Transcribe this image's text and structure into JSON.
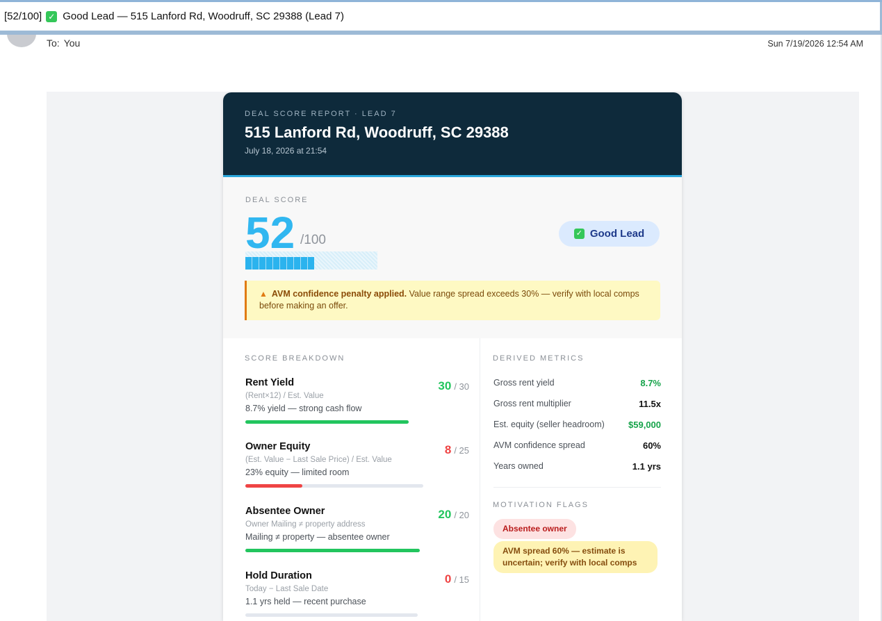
{
  "subject": {
    "prefix": "[52/100]",
    "text": "Good Lead — 515 Lanford Rd, Woodruff, SC 29388 (Lead 7)"
  },
  "meta": {
    "to_label": "To:",
    "to_value": "You",
    "date": "Sun 7/19/2026 12:54 AM"
  },
  "report": {
    "eyebrow": "DEAL SCORE REPORT · LEAD 7",
    "address": "515 Lanford Rd, Woodruff, SC 29388",
    "generated": "July 18, 2026 at 21:54"
  },
  "score": {
    "eyebrow": "DEAL SCORE",
    "value": "52",
    "max": "/100",
    "fraction": 0.52,
    "badge": "Good Lead"
  },
  "warning": {
    "bold": "AVM confidence penalty applied.",
    "text": " Value range spread exceeds 30% — verify with local comps before making an offer."
  },
  "breakdown": {
    "eyebrow": "SCORE BREAKDOWN",
    "items": [
      {
        "title": "Rent Yield",
        "formula": "(Rent×12) / Est. Value",
        "desc": "8.7% yield — strong cash flow",
        "points": "30",
        "max": "/ 30",
        "fraction": 1.0,
        "color": "#22c55e"
      },
      {
        "title": "Owner Equity",
        "formula": "(Est. Value − Last Sale Price) / Est. Value",
        "desc": "23% equity — limited room",
        "points": "8",
        "max": "/ 25",
        "fraction": 0.32,
        "color": "#ef4444"
      },
      {
        "title": "Absentee Owner",
        "formula": "Owner Mailing ≠ property address",
        "desc": "Mailing ≠ property — absentee owner",
        "points": "20",
        "max": "/ 20",
        "fraction": 1.0,
        "color": "#22c55e"
      },
      {
        "title": "Hold Duration",
        "formula": "Today − Last Sale Date",
        "desc": "1.1 yrs held — recent purchase",
        "points": "0",
        "max": "/ 15",
        "fraction": 0.0,
        "color": "#ef4444"
      }
    ]
  },
  "metrics": {
    "eyebrow": "DERIVED METRICS",
    "rows": [
      {
        "label": "Gross rent yield",
        "value": "8.7%",
        "color": "#16a34a"
      },
      {
        "label": "Gross rent multiplier",
        "value": "11.5x",
        "color": "#111111"
      },
      {
        "label": "Est. equity (seller headroom)",
        "value": "$59,000",
        "color": "#16a34a"
      },
      {
        "label": "AVM confidence spread",
        "value": "60%",
        "color": "#111111"
      },
      {
        "label": "Years owned",
        "value": "1.1 yrs",
        "color": "#111111"
      }
    ]
  },
  "flags": {
    "eyebrow": "MOTIVATION FLAGS",
    "items": [
      {
        "text": "Absentee owner",
        "bg": "#fde2e2",
        "color": "#b91c1c"
      },
      {
        "text": "AVM spread 60% — estimate is uncertain; verify with local comps",
        "bg": "#fef3b4",
        "color": "#854d0e"
      }
    ]
  }
}
